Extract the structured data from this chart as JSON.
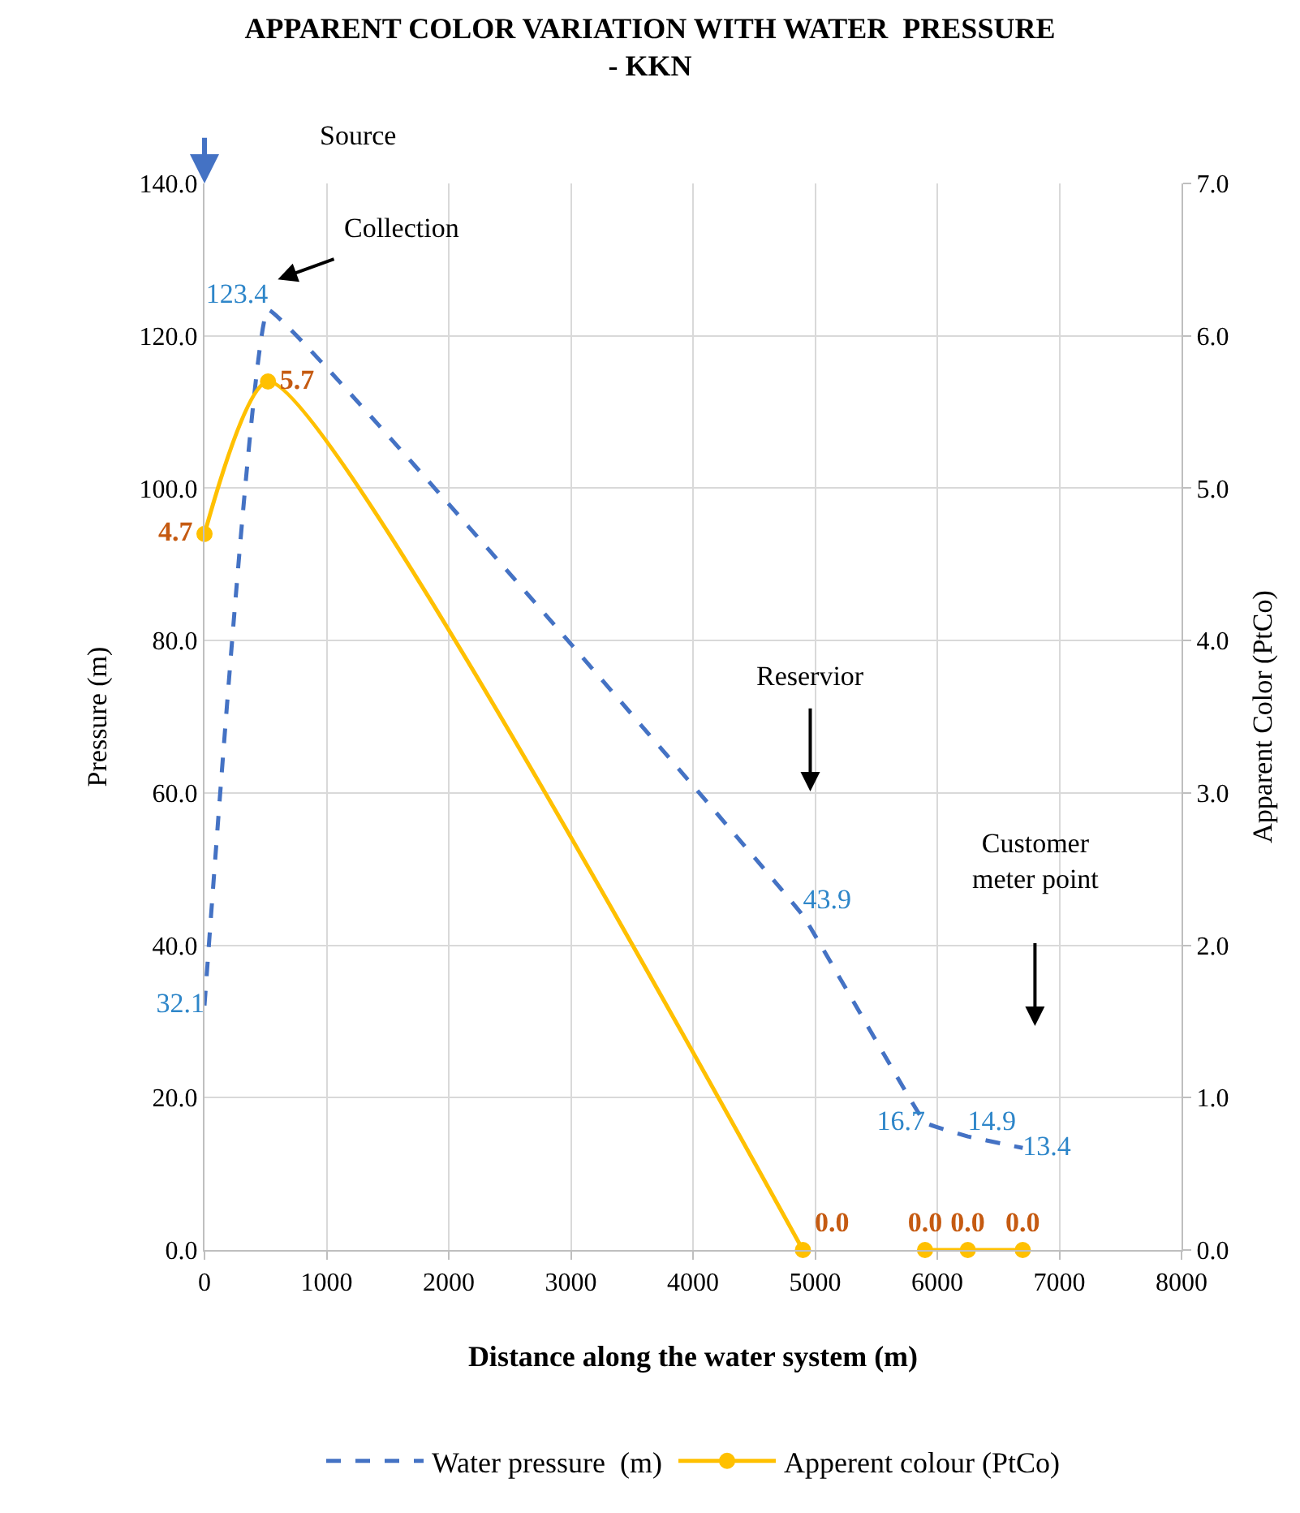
{
  "chart_data": {
    "type": "line",
    "title": "APPARENT COLOR VARIATION WITH WATER  PRESSURE\n- KKN",
    "xlabel": "Distance along the water system (m)",
    "ylabel": "Pressure (m)",
    "y2label": "Apparent Color (PtCo)",
    "x": [
      0,
      520,
      4900,
      5900,
      6250,
      6700
    ],
    "series": [
      {
        "name": "Water pressure  (m)",
        "color": "#4472c4",
        "values": [
          32.1,
          123.4,
          43.9,
          16.7,
          14.9,
          13.4
        ],
        "value_labels": [
          "32.1",
          "123.4",
          "43.9",
          "16.7",
          "14.9",
          "13.4"
        ],
        "line_style": "dashed",
        "marker": "none"
      },
      {
        "name": "Apperent colour (PtCo)",
        "color": "#ffc000",
        "x": [
          0,
          520,
          4900,
          5400,
          5900,
          6250,
          6700
        ],
        "values": [
          4.7,
          5.7,
          0.0,
          null,
          0.0,
          0.0,
          0.0
        ],
        "value_labels": [
          "4.7",
          "5.7",
          "0.0",
          null,
          "0.0",
          "0.0",
          "0.0"
        ],
        "axis": "y2",
        "line_style": "solid",
        "marker": "circle"
      }
    ],
    "xlim": [
      0,
      8000
    ],
    "xticks": [
      0,
      1000,
      2000,
      3000,
      4000,
      5000,
      6000,
      7000,
      8000
    ],
    "ylim": [
      0,
      140
    ],
    "yticks": [
      {
        "value": 0,
        "label": "0.0"
      },
      {
        "value": 20,
        "label": "20.0"
      },
      {
        "value": 40,
        "label": "40.0"
      },
      {
        "value": 60,
        "label": "60.0"
      },
      {
        "value": 80,
        "label": "80.0"
      },
      {
        "value": 100,
        "label": "100.0"
      },
      {
        "value": 120,
        "label": "120.0"
      },
      {
        "value": 140,
        "label": "140.0"
      }
    ],
    "y2lim": [
      0,
      7
    ],
    "y2ticks": [
      {
        "value": 0,
        "label": "0.0"
      },
      {
        "value": 1,
        "label": "1.0"
      },
      {
        "value": 2,
        "label": "2.0"
      },
      {
        "value": 3,
        "label": "3.0"
      },
      {
        "value": 4,
        "label": "4.0"
      },
      {
        "value": 5,
        "label": "5.0"
      },
      {
        "value": 6,
        "label": "6.0"
      },
      {
        "value": 7,
        "label": "7.0"
      }
    ],
    "annotations": [
      "Source",
      "Collection",
      "Reservior",
      "Customer\nmeter point"
    ],
    "grid": true,
    "legend": "bottom"
  }
}
